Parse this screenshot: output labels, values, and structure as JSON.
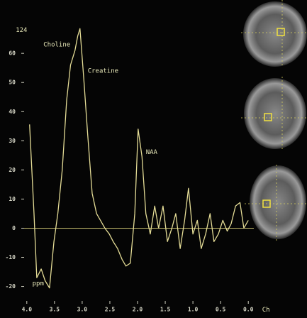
{
  "chart_data": {
    "type": "line",
    "annotations": [
      {
        "text": "124",
        "x": 4.2,
        "y": 68
      },
      {
        "text": "Choline",
        "x": 3.7,
        "y": 63
      },
      {
        "text": "Creatine",
        "x": 2.9,
        "y": 54
      },
      {
        "text": "NAA",
        "x": 1.85,
        "y": 26
      },
      {
        "text": "ppm",
        "x": 3.9,
        "y": -19
      },
      {
        "text": "Ch",
        "x": -0.25,
        "y": -28
      }
    ],
    "x": [
      3.95,
      3.87,
      3.82,
      3.74,
      3.67,
      3.59,
      3.51,
      3.44,
      3.36,
      3.28,
      3.21,
      3.13,
      3.08,
      3.04,
      2.97,
      2.9,
      2.82,
      2.74,
      2.67,
      2.59,
      2.51,
      2.44,
      2.36,
      2.28,
      2.21,
      2.13,
      2.05,
      1.99,
      1.92,
      1.85,
      1.77,
      1.69,
      1.62,
      1.54,
      1.46,
      1.38,
      1.31,
      1.23,
      1.15,
      1.08,
      1.0,
      0.92,
      0.85,
      0.77,
      0.69,
      0.62,
      0.54,
      0.46,
      0.38,
      0.31,
      0.23,
      0.15,
      0.08,
      0.0
    ],
    "series": [
      {
        "color": "#e4dc96",
        "values": [
          35.6,
          5,
          -17,
          -14,
          -18,
          -20.5,
          -4.6,
          5,
          20,
          44,
          56,
          61,
          66,
          68.5,
          51,
          32,
          12,
          5,
          2.7,
          0,
          -2,
          -4.6,
          -7,
          -10.7,
          -13,
          -12,
          5,
          34,
          24.6,
          5,
          -2,
          7.6,
          0,
          7.6,
          -4.6,
          0,
          5,
          -7,
          2.7,
          13.7,
          -2,
          2.7,
          -7,
          -2,
          5,
          -4.6,
          -2,
          2.7,
          -1,
          1.5,
          7.6,
          8.8,
          0,
          2.7
        ]
      }
    ],
    "xlim": [
      4.1,
      -0.1
    ],
    "xticks": [
      {
        "value": 4,
        "label": "4.0"
      },
      {
        "value": 3.5,
        "label": "3.5"
      },
      {
        "value": 3,
        "label": "3.0"
      },
      {
        "value": 2.5,
        "label": "2.5"
      },
      {
        "value": 2,
        "label": "2.0"
      },
      {
        "value": 1.5,
        "label": "1.5"
      },
      {
        "value": 1,
        "label": "1.0"
      },
      {
        "value": 0.5,
        "label": "0.5"
      },
      {
        "value": 0,
        "label": "0.0"
      }
    ],
    "ylim": [
      -24,
      71
    ],
    "yticks": [
      -20,
      -10,
      0,
      10,
      20,
      30,
      40,
      50,
      60
    ]
  }
}
